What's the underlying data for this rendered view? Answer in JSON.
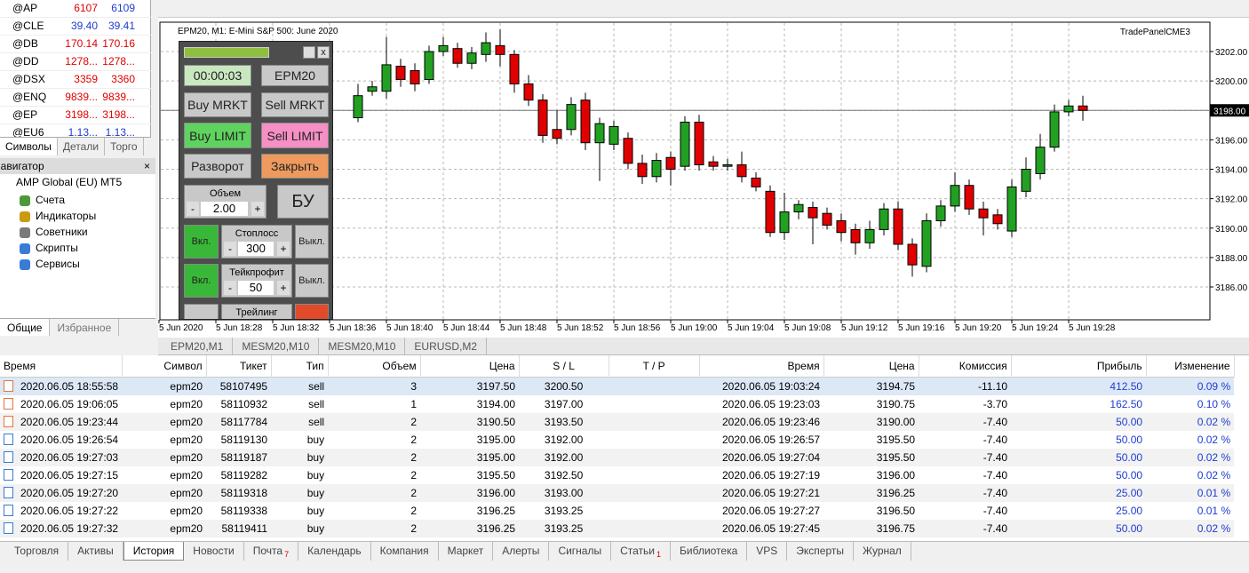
{
  "market_watch": {
    "rows": [
      {
        "symbol": "@AP",
        "bid": "6107",
        "ask": "6109",
        "bid_color": "#e00000",
        "ask_color": "#1e3ccf"
      },
      {
        "symbol": "@CLE",
        "bid": "39.40",
        "ask": "39.41",
        "bid_color": "#1e3ccf",
        "ask_color": "#1e3ccf"
      },
      {
        "symbol": "@DB",
        "bid": "170.14",
        "ask": "170.16",
        "bid_color": "#e00000",
        "ask_color": "#e00000"
      },
      {
        "symbol": "@DD",
        "bid": "1278...",
        "ask": "1278...",
        "bid_color": "#e00000",
        "ask_color": "#e00000"
      },
      {
        "symbol": "@DSX",
        "bid": "3359",
        "ask": "3360",
        "bid_color": "#e00000",
        "ask_color": "#e00000"
      },
      {
        "symbol": "@ENQ",
        "bid": "9839...",
        "ask": "9839...",
        "bid_color": "#e00000",
        "ask_color": "#e00000"
      },
      {
        "symbol": "@EP",
        "bid": "3198...",
        "ask": "3198...",
        "bid_color": "#e00000",
        "ask_color": "#e00000"
      },
      {
        "symbol": "@EU6",
        "bid": "1.13...",
        "ask": "1.13...",
        "bid_color": "#1e3ccf",
        "ask_color": "#1e3ccf"
      }
    ],
    "tabs": [
      "Символы",
      "Детали",
      "Торго"
    ]
  },
  "navigator": {
    "title": "Навигатор",
    "root": "AMP Global (EU) MT5",
    "items": [
      "Счета",
      "Индикаторы",
      "Советники",
      "Скрипты",
      "Сервисы"
    ],
    "tabs": [
      "Общие",
      "Избранное"
    ]
  },
  "chart": {
    "title": "EPM20, M1: E-Mini S&P 500: June 2020",
    "expert": "TradePanelCME3",
    "price_ticks": [
      {
        "value": 3202,
        "label": "3202.00"
      },
      {
        "value": 3200,
        "label": "3200.00"
      },
      {
        "value": 3198,
        "label": "3198.00"
      },
      {
        "value": 3196,
        "label": "3196.00"
      },
      {
        "value": 3194,
        "label": "3194.00"
      },
      {
        "value": 3192,
        "label": "3192.00"
      },
      {
        "value": 3190,
        "label": "3190.00"
      },
      {
        "value": 3188,
        "label": "3188.00"
      },
      {
        "value": 3186,
        "label": "3186.00"
      }
    ],
    "time_labels": [
      "5 Jun 2020",
      "5 Jun 18:28",
      "5 Jun 18:32",
      "5 Jun 18:36",
      "5 Jun 18:40",
      "5 Jun 18:44",
      "5 Jun 18:48",
      "5 Jun 18:52",
      "5 Jun 18:56",
      "5 Jun 19:00",
      "5 Jun 19:04",
      "5 Jun 19:08",
      "5 Jun 19:12",
      "5 Jun 19:16",
      "5 Jun 19:20",
      "5 Jun 19:24",
      "5 Jun 19:28"
    ],
    "current_price": {
      "value": 3198,
      "label": "3198.00"
    },
    "up_color": "#22a022",
    "down_color": "#e00000",
    "candles": [
      [
        3197.5,
        3199.8,
        3197.2,
        3199.0
      ],
      [
        3199.3,
        3200.0,
        3199.0,
        3199.6
      ],
      [
        3199.3,
        3203.0,
        3198.8,
        3201.1
      ],
      [
        3201.0,
        3201.5,
        3199.6,
        3200.1
      ],
      [
        3200.7,
        3201.2,
        3199.3,
        3199.8
      ],
      [
        3200.1,
        3202.4,
        3199.8,
        3202.0
      ],
      [
        3202.0,
        3203.0,
        3201.7,
        3202.4
      ],
      [
        3202.2,
        3202.6,
        3200.9,
        3201.2
      ],
      [
        3201.2,
        3202.3,
        3200.8,
        3201.9
      ],
      [
        3201.8,
        3203.3,
        3201.3,
        3202.6
      ],
      [
        3202.4,
        3203.5,
        3201.0,
        3201.8
      ],
      [
        3201.8,
        3202.1,
        3199.2,
        3199.8
      ],
      [
        3199.8,
        3200.4,
        3198.3,
        3198.7
      ],
      [
        3198.7,
        3199.1,
        3195.8,
        3196.3
      ],
      [
        3196.7,
        3198.0,
        3195.7,
        3196.1
      ],
      [
        3196.7,
        3198.9,
        3196.3,
        3198.4
      ],
      [
        3198.7,
        3199.2,
        3195.3,
        3195.8
      ],
      [
        3195.8,
        3197.5,
        3193.2,
        3197.1
      ],
      [
        3195.7,
        3197.3,
        3195.3,
        3196.9
      ],
      [
        3196.1,
        3196.5,
        3194.0,
        3194.4
      ],
      [
        3194.4,
        3195.0,
        3193.0,
        3193.5
      ],
      [
        3193.5,
        3195.1,
        3193.1,
        3194.6
      ],
      [
        3194.8,
        3195.2,
        3192.9,
        3194.0
      ],
      [
        3194.2,
        3197.6,
        3193.9,
        3197.2
      ],
      [
        3197.2,
        3197.7,
        3193.9,
        3194.3
      ],
      [
        3194.5,
        3194.9,
        3193.9,
        3194.2
      ],
      [
        3194.2,
        3194.7,
        3193.9,
        3194.3
      ],
      [
        3194.3,
        3195.2,
        3193.1,
        3193.5
      ],
      [
        3193.4,
        3193.8,
        3192.5,
        3192.8
      ],
      [
        3192.5,
        3192.9,
        3189.4,
        3189.7
      ],
      [
        3189.7,
        3192.4,
        3189.2,
        3191.1
      ],
      [
        3191.1,
        3191.9,
        3190.6,
        3191.6
      ],
      [
        3191.4,
        3191.8,
        3188.9,
        3190.7
      ],
      [
        3191.0,
        3191.4,
        3189.9,
        3190.2
      ],
      [
        3190.5,
        3191.0,
        3189.1,
        3189.7
      ],
      [
        3189.9,
        3190.3,
        3188.2,
        3189.0
      ],
      [
        3189.0,
        3190.5,
        3188.6,
        3189.9
      ],
      [
        3189.9,
        3191.7,
        3189.5,
        3191.3
      ],
      [
        3191.3,
        3191.8,
        3188.5,
        3188.9
      ],
      [
        3188.9,
        3189.3,
        3186.7,
        3187.5
      ],
      [
        3187.4,
        3191.0,
        3187.0,
        3190.5
      ],
      [
        3190.5,
        3191.9,
        3190.1,
        3191.5
      ],
      [
        3191.5,
        3193.8,
        3191.1,
        3192.9
      ],
      [
        3192.9,
        3193.3,
        3190.9,
        3191.3
      ],
      [
        3191.3,
        3191.8,
        3189.5,
        3190.7
      ],
      [
        3190.9,
        3191.3,
        3189.9,
        3190.3
      ],
      [
        3189.8,
        3193.3,
        3189.4,
        3192.8
      ],
      [
        3192.5,
        3194.8,
        3192.1,
        3194.0
      ],
      [
        3193.7,
        3196.4,
        3193.3,
        3195.5
      ],
      [
        3195.5,
        3198.4,
        3195.2,
        3197.9
      ],
      [
        3197.9,
        3198.7,
        3197.6,
        3198.3
      ],
      [
        3198.3,
        3199.0,
        3197.3,
        3198.0
      ]
    ]
  },
  "trade_panel": {
    "timer": "00:00:03",
    "symbol": "EPM20",
    "buy_market": "Buy MRKT",
    "sell_market": "Sell MRKT",
    "buy_limit": "Buy LIMIT",
    "sell_limit": "Sell LIMIT",
    "reverse": "Разворот",
    "close": "Закрыть",
    "volume": {
      "label": "Объем",
      "minus": "-",
      "value": "2.00",
      "plus": "+"
    },
    "breakeven": "БУ",
    "stoploss": {
      "on": "Вкл.",
      "label": "Стоплосс",
      "minus": "-",
      "value": "300",
      "plus": "+",
      "off": "Выкл."
    },
    "takeprofit": {
      "on": "Вкл.",
      "label": "Тейкпрофит",
      "minus": "-",
      "value": "50",
      "plus": "+",
      "off": "Выкл."
    },
    "trailing": {
      "label": "Трейлинг"
    },
    "close_x": "x"
  },
  "chart_tabs": [
    "EPM20,M1",
    "MESM20,M10",
    "MESM20,M10",
    "EURUSD,M2"
  ],
  "history": {
    "columns": [
      "Время",
      "Символ",
      "Тикет",
      "Тип",
      "Объем",
      "Цена",
      "S / L",
      "T / P",
      "Время",
      "Цена",
      "Комиссия",
      "Прибыль",
      "Изменение"
    ],
    "rows": [
      {
        "icon": "#e8743b",
        "open_time": "2020.06.05 18:55:58",
        "symbol": "epm20",
        "ticket": "58107495",
        "type": "sell",
        "volume": "3",
        "price": "3197.50",
        "sl": "3200.50",
        "close_time": "2020.06.05 19:03:24",
        "close_price": "3194.75",
        "commission": "-11.10",
        "profit": "412.50",
        "change": "0.09 %"
      },
      {
        "icon": "#e8743b",
        "open_time": "2020.06.05 19:06:05",
        "symbol": "epm20",
        "ticket": "58110932",
        "type": "sell",
        "volume": "1",
        "price": "3194.00",
        "sl": "3197.00",
        "close_time": "2020.06.05 19:23:03",
        "close_price": "3190.75",
        "commission": "-3.70",
        "profit": "162.50",
        "change": "0.10 %"
      },
      {
        "icon": "#e8743b",
        "open_time": "2020.06.05 19:23:44",
        "symbol": "epm20",
        "ticket": "58117784",
        "type": "sell",
        "volume": "2",
        "price": "3190.50",
        "sl": "3193.50",
        "close_time": "2020.06.05 19:23:46",
        "close_price": "3190.00",
        "commission": "-7.40",
        "profit": "50.00",
        "change": "0.02 %"
      },
      {
        "icon": "#3a7bd5",
        "open_time": "2020.06.05 19:26:54",
        "symbol": "epm20",
        "ticket": "58119130",
        "type": "buy",
        "volume": "2",
        "price": "3195.00",
        "sl": "3192.00",
        "close_time": "2020.06.05 19:26:57",
        "close_price": "3195.50",
        "commission": "-7.40",
        "profit": "50.00",
        "change": "0.02 %"
      },
      {
        "icon": "#3a7bd5",
        "open_time": "2020.06.05 19:27:03",
        "symbol": "epm20",
        "ticket": "58119187",
        "type": "buy",
        "volume": "2",
        "price": "3195.00",
        "sl": "3192.00",
        "close_time": "2020.06.05 19:27:04",
        "close_price": "3195.50",
        "commission": "-7.40",
        "profit": "50.00",
        "change": "0.02 %"
      },
      {
        "icon": "#3a7bd5",
        "open_time": "2020.06.05 19:27:15",
        "symbol": "epm20",
        "ticket": "58119282",
        "type": "buy",
        "volume": "2",
        "price": "3195.50",
        "sl": "3192.50",
        "close_time": "2020.06.05 19:27:19",
        "close_price": "3196.00",
        "commission": "-7.40",
        "profit": "50.00",
        "change": "0.02 %"
      },
      {
        "icon": "#3a7bd5",
        "open_time": "2020.06.05 19:27:20",
        "symbol": "epm20",
        "ticket": "58119318",
        "type": "buy",
        "volume": "2",
        "price": "3196.00",
        "sl": "3193.00",
        "close_time": "2020.06.05 19:27:21",
        "close_price": "3196.25",
        "commission": "-7.40",
        "profit": "25.00",
        "change": "0.01 %"
      },
      {
        "icon": "#3a7bd5",
        "open_time": "2020.06.05 19:27:22",
        "symbol": "epm20",
        "ticket": "58119338",
        "type": "buy",
        "volume": "2",
        "price": "3196.25",
        "sl": "3193.25",
        "close_time": "2020.06.05 19:27:27",
        "close_price": "3196.50",
        "commission": "-7.40",
        "profit": "25.00",
        "change": "0.01 %"
      },
      {
        "icon": "#3a7bd5",
        "open_time": "2020.06.05 19:27:32",
        "symbol": "epm20",
        "ticket": "58119411",
        "type": "buy",
        "volume": "2",
        "price": "3196.25",
        "sl": "3193.25",
        "close_time": "2020.06.05 19:27:45",
        "close_price": "3196.75",
        "commission": "-7.40",
        "profit": "50.00",
        "change": "0.02 %"
      }
    ]
  },
  "bottom_tabs": [
    {
      "label": "Торговля"
    },
    {
      "label": "Активы"
    },
    {
      "label": "История"
    },
    {
      "label": "Новости"
    },
    {
      "label": "Почта",
      "badge": "7"
    },
    {
      "label": "Календарь"
    },
    {
      "label": "Компания"
    },
    {
      "label": "Маркет"
    },
    {
      "label": "Алерты"
    },
    {
      "label": "Сигналы"
    },
    {
      "label": "Статьи",
      "badge": "1"
    },
    {
      "label": "Библиотека"
    },
    {
      "label": "VPS"
    },
    {
      "label": "Эксперты"
    },
    {
      "label": "Журнал"
    }
  ]
}
